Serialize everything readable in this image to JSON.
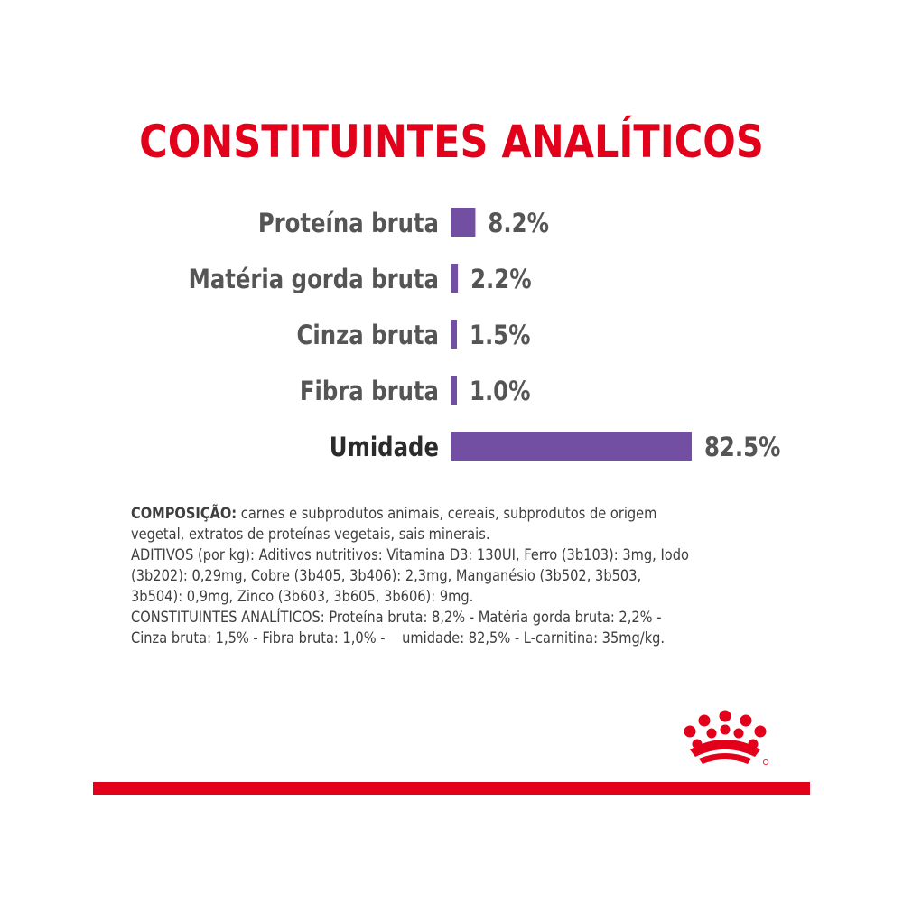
{
  "title": "CONSTITUINTES ANALÍTICOS",
  "colors": {
    "title": "#e2001a",
    "bar": "#734fa3",
    "label": "#555555",
    "highlight_label": "#2b2b2b",
    "footer_bar": "#e2001a"
  },
  "chart_data": {
    "type": "bar",
    "orientation": "horizontal",
    "categories": [
      "Proteína bruta",
      "Matéria gorda bruta",
      "Cinza bruta",
      "Fibra bruta",
      "Umidade"
    ],
    "values": [
      8.2,
      2.2,
      1.5,
      1.0,
      82.5
    ],
    "value_labels": [
      "8.2%",
      "2.2%",
      "1.5%",
      "1.0%",
      "82.5%"
    ],
    "unit": "%",
    "grid": false,
    "legend": "none"
  },
  "composition": {
    "heading": "COMPOSIÇÃO:",
    "ingredients": " carnes e subprodutos animais, cereais, subprodutos de origem vegetal, extratos de proteínas vegetais, sais minerais.",
    "additives": "ADITIVOS (por kg): Aditivos nutritivos: Vitamina D3: 130UI, Ferro (3b103): 3mg, Iodo (3b202): 0,29mg, Cobre (3b405, 3b406): 2,3mg, Manganésio (3b502, 3b503, 3b504): 0,9mg, Zinco (3b603, 3b605, 3b606): 9mg.",
    "analytical": "CONSTITUINTES ANALÍTICOS: Proteína bruta: 8,2% - Matéria gorda bruta: 2,2% - Cinza bruta: 1,5% - Fibra bruta: 1,0% -    umidade: 82,5% - L-carnitina: 35mg/kg."
  },
  "logo_icon": "royal-canin-crown-icon"
}
